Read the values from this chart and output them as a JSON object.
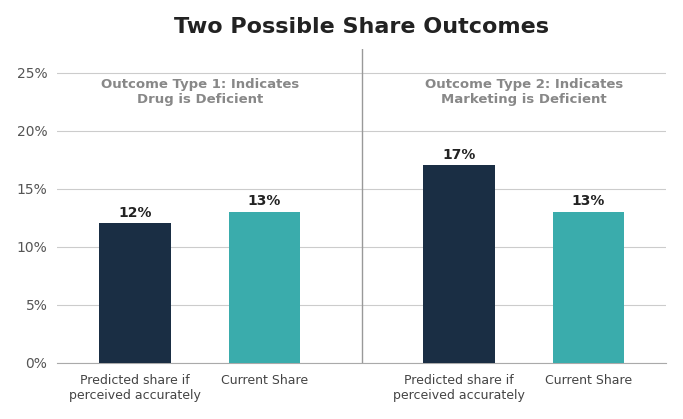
{
  "title": "Two Possible Share Outcomes",
  "title_fontsize": 16,
  "title_fontweight": "bold",
  "bars": [
    {
      "label": "Predicted share if\nperceived accurately",
      "value": 0.12,
      "color": "#1a2e44",
      "group": 1
    },
    {
      "label": "Current Share",
      "value": 0.13,
      "color": "#3aacac",
      "group": 1
    },
    {
      "label": "Predicted share if\nperceived accurately",
      "value": 0.17,
      "color": "#1a2e44",
      "group": 2
    },
    {
      "label": "Current Share",
      "value": 0.13,
      "color": "#3aacac",
      "group": 2
    }
  ],
  "bar_labels": [
    "12%",
    "13%",
    "17%",
    "13%"
  ],
  "ylim": [
    0,
    0.27
  ],
  "yticks": [
    0.0,
    0.05,
    0.1,
    0.15,
    0.2,
    0.25
  ],
  "yticklabels": [
    "0%",
    "5%",
    "10%",
    "15%",
    "20%",
    "25%"
  ],
  "annotation1_title": "Outcome Type 1: Indicates\nDrug is Deficient",
  "annotation2_title": "Outcome Type 2: Indicates\nMarketing is Deficient",
  "plot_background": "#ffffff",
  "grid_color": "#cccccc",
  "bar_width": 0.55,
  "x_positions": [
    0,
    1,
    2.5,
    3.5
  ],
  "xlim": [
    -0.6,
    4.1
  ]
}
